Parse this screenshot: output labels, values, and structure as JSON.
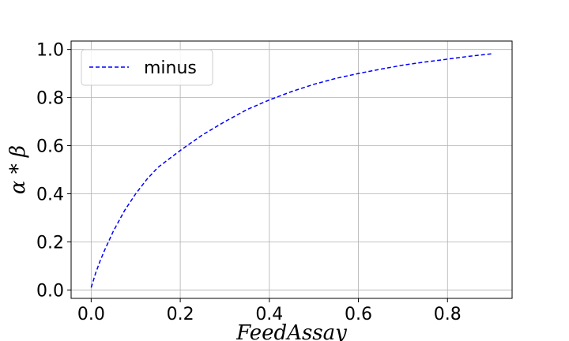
{
  "chart_data": {
    "type": "line",
    "title": "",
    "xlabel": "FeedAssay",
    "ylabel": "α * β",
    "xlim": [
      -0.045,
      0.945
    ],
    "ylim": [
      -0.035,
      1.035
    ],
    "xticks": [
      0.0,
      0.2,
      0.4,
      0.6,
      0.8
    ],
    "xtick_labels": [
      "0.0",
      "0.2",
      "0.4",
      "0.6",
      "0.8"
    ],
    "yticks": [
      0.0,
      0.2,
      0.4,
      0.6,
      0.8,
      1.0
    ],
    "ytick_labels": [
      "0.0",
      "0.2",
      "0.4",
      "0.6",
      "0.8",
      "1.0"
    ],
    "grid": true,
    "legend_position": "top-left",
    "series": [
      {
        "name": "minus",
        "color": "#0000ff",
        "style": "dashed",
        "x": [
          0.0,
          0.005,
          0.01,
          0.02,
          0.03,
          0.05,
          0.075,
          0.1,
          0.125,
          0.15,
          0.2,
          0.25,
          0.3,
          0.35,
          0.4,
          0.45,
          0.5,
          0.55,
          0.6,
          0.65,
          0.7,
          0.75,
          0.8,
          0.85,
          0.9
        ],
        "y": [
          0.01,
          0.04,
          0.07,
          0.12,
          0.165,
          0.245,
          0.33,
          0.4,
          0.46,
          0.51,
          0.58,
          0.645,
          0.7,
          0.75,
          0.79,
          0.825,
          0.855,
          0.88,
          0.9,
          0.918,
          0.935,
          0.948,
          0.96,
          0.972,
          0.982
        ]
      }
    ]
  }
}
